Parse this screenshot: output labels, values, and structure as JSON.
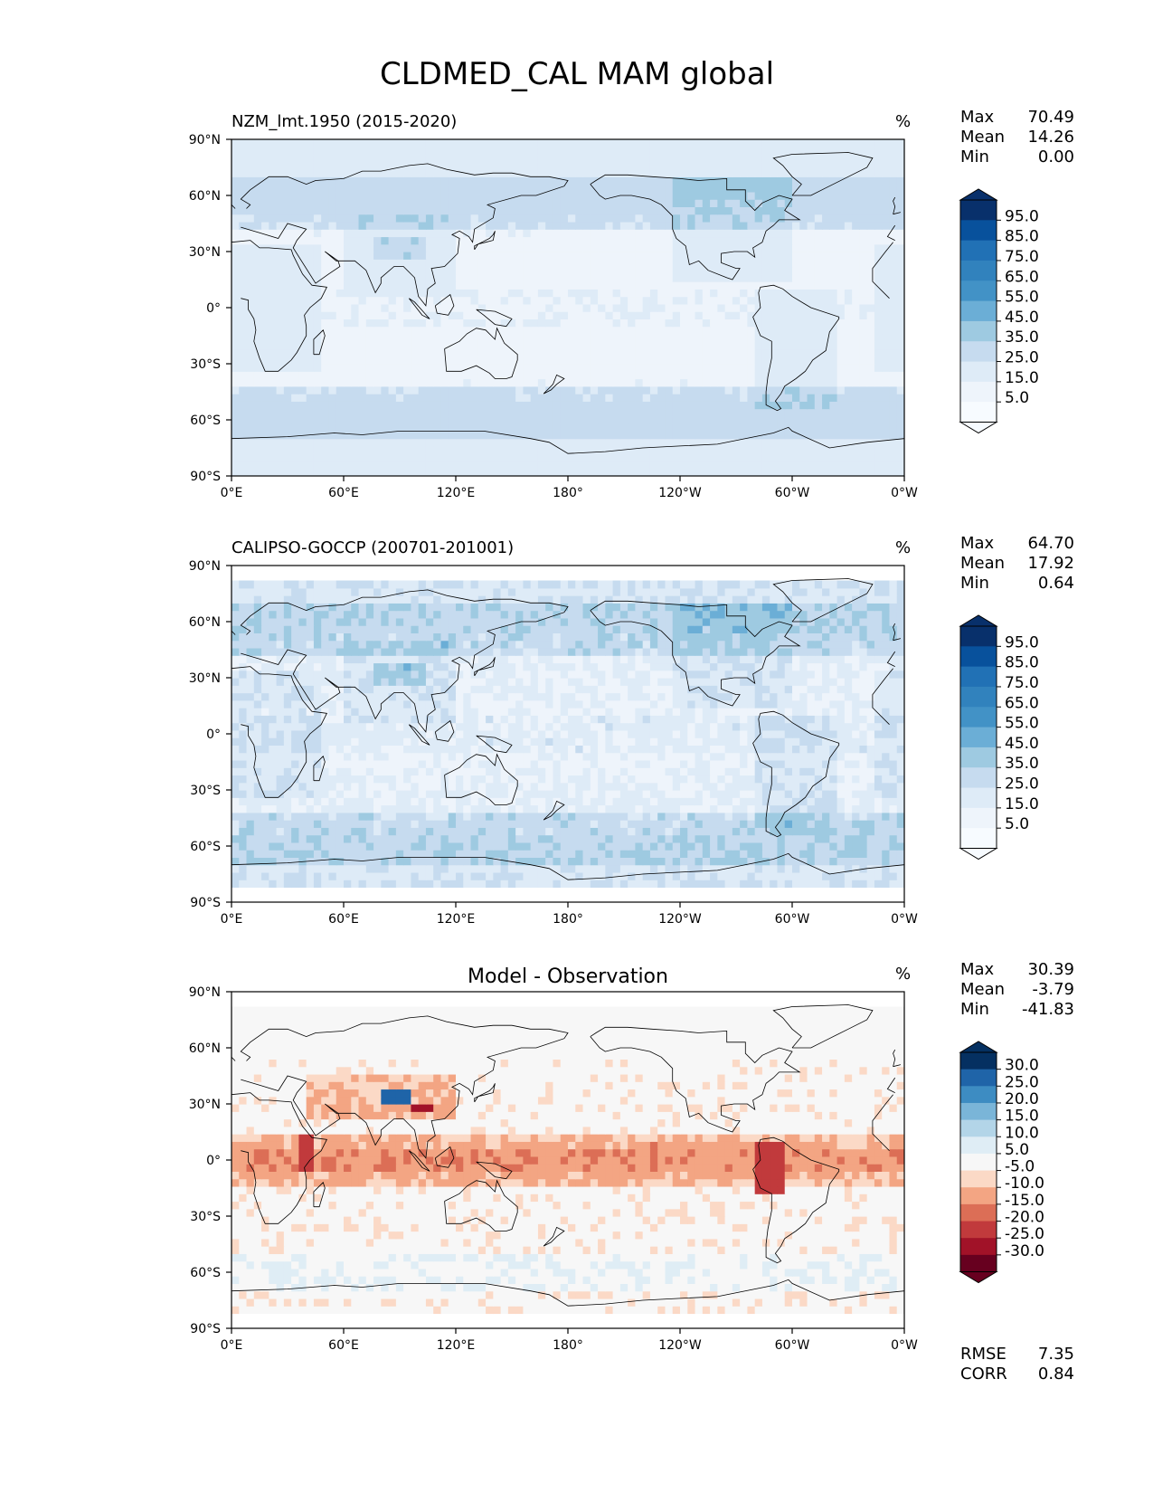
{
  "chart_data": {
    "type": "heatmap",
    "title": "CLDMED_CAL MAM global",
    "unit_label": "%",
    "lat_ticks": [
      "90°N",
      "60°N",
      "30°N",
      "0°",
      "30°S",
      "60°S",
      "90°S"
    ],
    "lon_ticks": [
      "0°E",
      "60°E",
      "120°E",
      "180°",
      "120°W",
      "60°W",
      "0°W"
    ],
    "xlim": [
      0,
      360
    ],
    "ylim": [
      -90,
      90
    ],
    "panels": [
      {
        "title": "NZM_lmt.1950 (2015-2020)",
        "title_align": "left",
        "palette": "blues",
        "stats": [
          {
            "label": "Max",
            "value": "70.49"
          },
          {
            "label": "Mean",
            "value": "14.26"
          },
          {
            "label": "Min",
            "value": "0.00"
          }
        ],
        "colorbar_levels": [
          "95.0",
          "85.0",
          "75.0",
          "65.0",
          "55.0",
          "45.0",
          "35.0",
          "25.0",
          "15.0",
          "5.0"
        ],
        "colorbar_colors": [
          "#08306b",
          "#08519c",
          "#2171b5",
          "#3182bd",
          "#4292c6",
          "#6baed6",
          "#9ecae1",
          "#c6dbef",
          "#deebf7",
          "#eef4fb",
          "#f7fbff"
        ],
        "lat_coverage": [
          -90,
          88
        ]
      },
      {
        "title": "CALIPSO-GOCCP (200701-201001)",
        "title_align": "left",
        "palette": "blues",
        "stats": [
          {
            "label": "Max",
            "value": "64.70"
          },
          {
            "label": "Mean",
            "value": "17.92"
          },
          {
            "label": "Min",
            "value": "0.64"
          }
        ],
        "colorbar_levels": [
          "95.0",
          "85.0",
          "75.0",
          "65.0",
          "55.0",
          "45.0",
          "35.0",
          "25.0",
          "15.0",
          "5.0"
        ],
        "colorbar_colors": [
          "#08306b",
          "#08519c",
          "#2171b5",
          "#3182bd",
          "#4292c6",
          "#6baed6",
          "#9ecae1",
          "#c6dbef",
          "#deebf7",
          "#eef4fb",
          "#f7fbff"
        ],
        "lat_coverage": [
          -82,
          82
        ]
      },
      {
        "title": "Model - Observation",
        "title_align": "center",
        "palette": "diff",
        "stats": [
          {
            "label": "Max",
            "value": "30.39"
          },
          {
            "label": "Mean",
            "value": "-3.79"
          },
          {
            "label": "Min",
            "value": "-41.83"
          }
        ],
        "colorbar_levels": [
          "30.0",
          "25.0",
          "20.0",
          "15.0",
          "10.0",
          "5.0",
          "-5.0",
          "-10.0",
          "-15.0",
          "-20.0",
          "-25.0",
          "-30.0"
        ],
        "colorbar_colors": [
          "#053061",
          "#1f64a8",
          "#3d8cc2",
          "#7ab5d8",
          "#b3d5e8",
          "#dfedf5",
          "#f7f7f7",
          "#fbd9c6",
          "#f3a583",
          "#dc6e56",
          "#c13a3c",
          "#a11228",
          "#67001f"
        ],
        "lat_coverage": [
          -82,
          82
        ],
        "bottom_stats": [
          {
            "label": "RMSE",
            "value": "7.35"
          },
          {
            "label": "CORR",
            "value": "0.84"
          }
        ]
      }
    ]
  }
}
